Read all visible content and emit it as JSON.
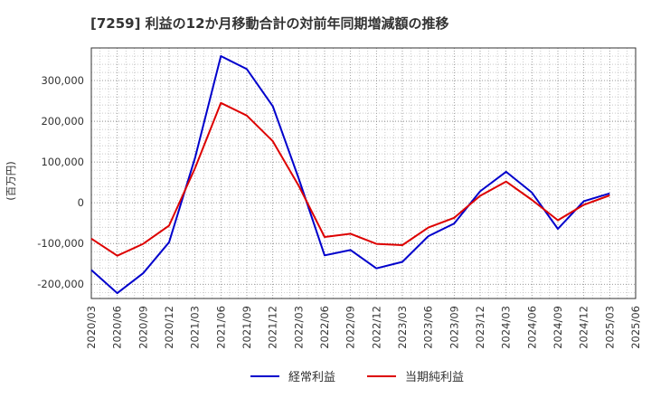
{
  "chart_data": {
    "type": "line",
    "title": "[7259]  利益の12か月移動合計の対前年同期増減額の推移",
    "ylabel": "(百万円)",
    "xlabel": "",
    "x": [
      "2020/03",
      "2020/06",
      "2020/09",
      "2020/12",
      "2021/03",
      "2021/06",
      "2021/09",
      "2021/12",
      "2022/03",
      "2022/06",
      "2022/09",
      "2022/12",
      "2023/03",
      "2023/06",
      "2023/09",
      "2023/12",
      "2024/03",
      "2024/06",
      "2024/09",
      "2024/12",
      "2025/03",
      "2025/06"
    ],
    "ylim": [
      -235000,
      380000
    ],
    "yticks": [
      -200000,
      -100000,
      0,
      100000,
      200000,
      300000
    ],
    "ytick_labels": [
      "-200,000",
      "-100,000",
      "0",
      "100,000",
      "200,000",
      "300,000"
    ],
    "grid": true,
    "legend_position": "bottom",
    "series": [
      {
        "name": "経常利益",
        "color": "#0000cc",
        "values": [
          -165000,
          -222000,
          -173000,
          -97000,
          110000,
          360000,
          328000,
          237000,
          60000,
          -129000,
          -116000,
          -161000,
          -145000,
          -82000,
          -51000,
          28000,
          76000,
          25000,
          -64000,
          4000,
          23000,
          null
        ]
      },
      {
        "name": "当期純利益",
        "color": "#dd0000",
        "values": [
          -88000,
          -130000,
          -101000,
          -56000,
          85000,
          245000,
          214000,
          151000,
          42000,
          -84000,
          -76000,
          -101000,
          -104000,
          -61000,
          -37000,
          17000,
          52000,
          7000,
          -43000,
          -5000,
          18000,
          null
        ]
      }
    ]
  }
}
